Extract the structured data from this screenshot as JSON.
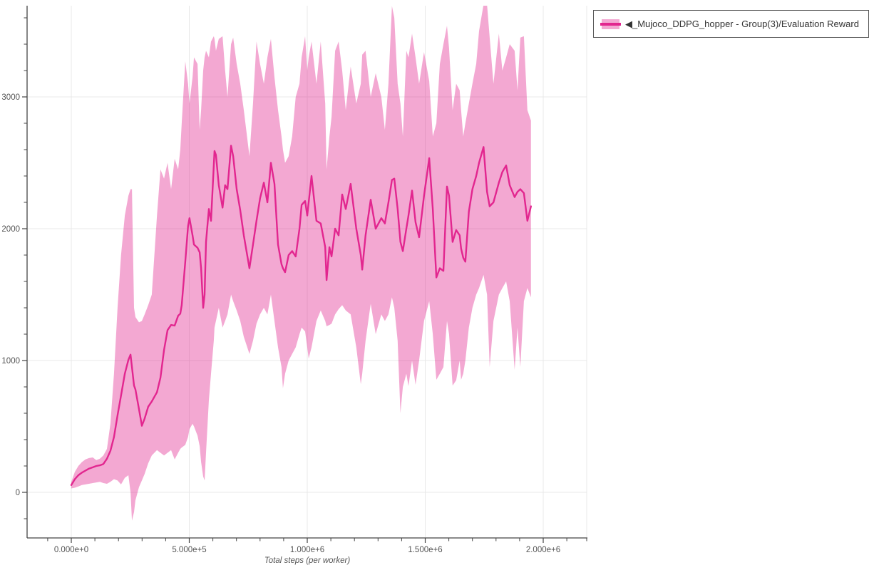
{
  "colors": {
    "line": "#e2268f",
    "band": "rgba(226,38,143,0.40)",
    "grid": "#e8e8e8",
    "axis": "#444444",
    "tick_label": "#545454",
    "legend_border": "#555555",
    "background": "#ffffff"
  },
  "legend": {
    "label": "◀_Mujoco_DDPG_hopper - Group(3)/Evaluation Reward"
  },
  "chart_data": {
    "type": "line",
    "title": "",
    "xlabel": "Total steps (per worker)",
    "ylabel": "",
    "grid": true,
    "legend_position": "top-right-outside",
    "xlim": [
      -187000,
      2185000
    ],
    "ylim": [
      -346,
      3692
    ],
    "x_tick_values": [
      0,
      500000,
      1000000,
      1500000,
      2000000
    ],
    "x_tick_labels": [
      "0.000e+0",
      "5.000e+5",
      "1.000e+6",
      "1.500e+6",
      "2.000e+6"
    ],
    "x_minor_step": 100000,
    "y_tick_values": [
      0,
      1000,
      2000,
      3000
    ],
    "y_tick_labels": [
      "0",
      "1000",
      "2000",
      "3000"
    ],
    "y_minor_step": 200,
    "series": [
      {
        "name": "◀_Mujoco_DDPG_hopper - Group(3)/Evaluation Reward",
        "color": "#e2268f",
        "band_color": "rgba(226,38,143,0.40)",
        "x_unit": "steps_x1000",
        "point_format": [
          "x",
          "lower",
          "mean",
          "upper"
        ],
        "points": [
          [
            0,
            30,
            55,
            80
          ],
          [
            15,
            35,
            100,
            155
          ],
          [
            30,
            45,
            130,
            200
          ],
          [
            45,
            55,
            150,
            230
          ],
          [
            60,
            60,
            165,
            250
          ],
          [
            75,
            65,
            180,
            260
          ],
          [
            91,
            70,
            190,
            265
          ],
          [
            106,
            75,
            200,
            245
          ],
          [
            121,
            80,
            205,
            255
          ],
          [
            136,
            70,
            215,
            280
          ],
          [
            151,
            65,
            255,
            330
          ],
          [
            166,
            80,
            315,
            520
          ],
          [
            181,
            100,
            420,
            900
          ],
          [
            196,
            90,
            585,
            1400
          ],
          [
            211,
            60,
            735,
            1800
          ],
          [
            227,
            110,
            900,
            2100
          ],
          [
            242,
            130,
            1005,
            2250
          ],
          [
            251,
            0,
            1045,
            2300
          ],
          [
            257,
            -215,
            950,
            2300
          ],
          [
            266,
            -150,
            810,
            1400
          ],
          [
            272,
            -60,
            780,
            1330
          ],
          [
            287,
            40,
            630,
            1290
          ],
          [
            299,
            90,
            505,
            1300
          ],
          [
            311,
            140,
            560,
            1350
          ],
          [
            326,
            220,
            650,
            1420
          ],
          [
            341,
            280,
            690,
            1500
          ],
          [
            363,
            320,
            760,
            2100
          ],
          [
            378,
            300,
            870,
            2450
          ],
          [
            393,
            280,
            1080,
            2380
          ],
          [
            408,
            300,
            1230,
            2500
          ],
          [
            423,
            320,
            1270,
            2300
          ],
          [
            438,
            250,
            1265,
            2530
          ],
          [
            453,
            300,
            1340,
            2450
          ],
          [
            462,
            330,
            1355,
            2600
          ],
          [
            468,
            340,
            1420,
            2800
          ],
          [
            483,
            360,
            1750,
            3270
          ],
          [
            495,
            420,
            2020,
            3100
          ],
          [
            501,
            480,
            2080,
            2950
          ],
          [
            514,
            520,
            1950,
            3150
          ],
          [
            520,
            500,
            1880,
            3300
          ],
          [
            535,
            430,
            1855,
            3250
          ],
          [
            544,
            350,
            1820,
            2750
          ],
          [
            550,
            230,
            1700,
            2900
          ],
          [
            559,
            120,
            1400,
            3200
          ],
          [
            565,
            90,
            1500,
            3300
          ],
          [
            571,
            300,
            1900,
            3350
          ],
          [
            583,
            700,
            2150,
            3300
          ],
          [
            592,
            900,
            2060,
            3420
          ],
          [
            604,
            1150,
            2480,
            3460
          ],
          [
            607,
            1250,
            2590,
            3440
          ],
          [
            613,
            1300,
            2560,
            3350
          ],
          [
            625,
            1400,
            2330,
            3440
          ],
          [
            641,
            1250,
            2160,
            3460
          ],
          [
            652,
            1300,
            2330,
            3200
          ],
          [
            662,
            1350,
            2300,
            3000
          ],
          [
            677,
            1500,
            2630,
            3400
          ],
          [
            686,
            1450,
            2550,
            3450
          ],
          [
            701,
            1380,
            2300,
            3250
          ],
          [
            716,
            1300,
            2140,
            3100
          ],
          [
            731,
            1180,
            1950,
            2900
          ],
          [
            755,
            1050,
            1700,
            2550
          ],
          [
            770,
            1150,
            1880,
            2950
          ],
          [
            785,
            1280,
            2060,
            3420
          ],
          [
            800,
            1350,
            2230,
            3250
          ],
          [
            816,
            1400,
            2350,
            3100
          ],
          [
            831,
            1350,
            2200,
            3300
          ],
          [
            846,
            1500,
            2500,
            3440
          ],
          [
            861,
            1300,
            2340,
            3150
          ],
          [
            876,
            1100,
            1880,
            2900
          ],
          [
            891,
            950,
            1730,
            2700
          ],
          [
            897,
            790,
            1700,
            2600
          ],
          [
            906,
            900,
            1670,
            2500
          ],
          [
            921,
            1000,
            1800,
            2550
          ],
          [
            936,
            1050,
            1830,
            2700
          ],
          [
            951,
            1100,
            1790,
            3000
          ],
          [
            967,
            1200,
            2000,
            3100
          ],
          [
            976,
            1250,
            2180,
            3300
          ],
          [
            991,
            1220,
            2210,
            3460
          ],
          [
            1000,
            1100,
            2100,
            3200
          ],
          [
            1006,
            1015,
            2200,
            3300
          ],
          [
            1018,
            1100,
            2400,
            3420
          ],
          [
            1039,
            1300,
            2060,
            3100
          ],
          [
            1057,
            1380,
            2040,
            3420
          ],
          [
            1076,
            1300,
            1860,
            2950
          ],
          [
            1082,
            1260,
            1610,
            2450
          ],
          [
            1094,
            1270,
            1860,
            2700
          ],
          [
            1103,
            1280,
            1790,
            2850
          ],
          [
            1118,
            1350,
            2000,
            3350
          ],
          [
            1133,
            1390,
            1950,
            3420
          ],
          [
            1148,
            1420,
            2260,
            3200
          ],
          [
            1163,
            1380,
            2150,
            2900
          ],
          [
            1184,
            1350,
            2340,
            3230
          ],
          [
            1208,
            1100,
            2000,
            2950
          ],
          [
            1227,
            820,
            1800,
            3100
          ],
          [
            1233,
            900,
            1690,
            3320
          ],
          [
            1247,
            1150,
            1950,
            3350
          ],
          [
            1269,
            1430,
            2220,
            3000
          ],
          [
            1290,
            1200,
            2000,
            3180
          ],
          [
            1314,
            1350,
            2080,
            3000
          ],
          [
            1329,
            1300,
            2040,
            2750
          ],
          [
            1344,
            1350,
            2200,
            3100
          ],
          [
            1359,
            1480,
            2370,
            3690
          ],
          [
            1369,
            1400,
            2380,
            3600
          ],
          [
            1383,
            1150,
            2150,
            3100
          ],
          [
            1395,
            600,
            1900,
            2950
          ],
          [
            1405,
            800,
            1830,
            2700
          ],
          [
            1420,
            900,
            2000,
            3350
          ],
          [
            1429,
            806,
            2100,
            3300
          ],
          [
            1444,
            1000,
            2290,
            3480
          ],
          [
            1459,
            816,
            2050,
            3300
          ],
          [
            1474,
            1000,
            1935,
            3100
          ],
          [
            1495,
            1300,
            2250,
            3340
          ],
          [
            1517,
            1450,
            2535,
            3120
          ],
          [
            1532,
            1200,
            2150,
            2700
          ],
          [
            1547,
            854,
            1630,
            2800
          ],
          [
            1562,
            900,
            1700,
            3250
          ],
          [
            1577,
            950,
            1680,
            3400
          ],
          [
            1592,
            1300,
            2320,
            3540
          ],
          [
            1601,
            1200,
            2250,
            3370
          ],
          [
            1616,
            810,
            1900,
            2900
          ],
          [
            1631,
            850,
            1990,
            3100
          ],
          [
            1646,
            1000,
            1950,
            3050
          ],
          [
            1652,
            854,
            1850,
            2900
          ],
          [
            1661,
            900,
            1780,
            2700
          ],
          [
            1670,
            1000,
            1750,
            2800
          ],
          [
            1685,
            1250,
            2130,
            2950
          ],
          [
            1700,
            1400,
            2300,
            3100
          ],
          [
            1716,
            1500,
            2400,
            3250
          ],
          [
            1728,
            1550,
            2500,
            3500
          ],
          [
            1747,
            1650,
            2620,
            3700
          ],
          [
            1762,
            1500,
            2280,
            3700
          ],
          [
            1773,
            950,
            2170,
            3450
          ],
          [
            1789,
            1300,
            2200,
            3100
          ],
          [
            1812,
            1500,
            2350,
            3480
          ],
          [
            1827,
            1550,
            2430,
            3200
          ],
          [
            1843,
            1600,
            2480,
            3300
          ],
          [
            1858,
            1450,
            2330,
            3400
          ],
          [
            1879,
            930,
            2240,
            3350
          ],
          [
            1891,
            1250,
            2280,
            3050
          ],
          [
            1903,
            950,
            2300,
            3450
          ],
          [
            1918,
            1450,
            2270,
            3460
          ],
          [
            1933,
            1550,
            2060,
            2900
          ],
          [
            1948,
            1480,
            2170,
            2820
          ]
        ]
      }
    ]
  }
}
